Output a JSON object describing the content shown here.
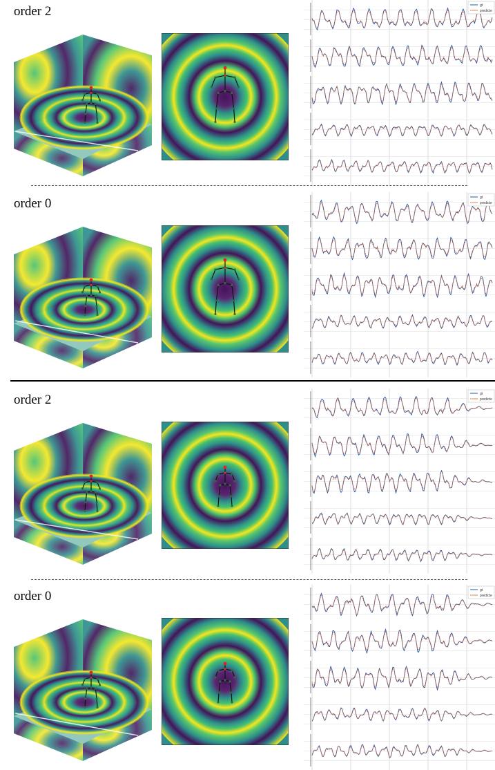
{
  "panels": [
    {
      "label": "order 2",
      "legend": [
        "gt",
        "predicte"
      ],
      "ribbon": "pos2",
      "variant": 0
    },
    {
      "label": "order 0",
      "legend": [
        "gt",
        "predicte"
      ],
      "ribbon": "pos0",
      "variant": 1
    },
    {
      "label": "order 2",
      "legend": [
        "gt",
        "predicte"
      ],
      "ribbon": "pos2",
      "variant": 2
    },
    {
      "label": "order 0",
      "legend": [
        "gt",
        "predicte"
      ],
      "ribbon": "pos0",
      "variant": 3
    }
  ],
  "colors": {
    "gt_line": "#2457a8",
    "pred_line": "#e0642a",
    "viridis_dark": "#44135a",
    "viridis_teal": "#2d8e8b",
    "viridis_green": "#47c16e",
    "viridis_yellow": "#f4e61e"
  }
}
